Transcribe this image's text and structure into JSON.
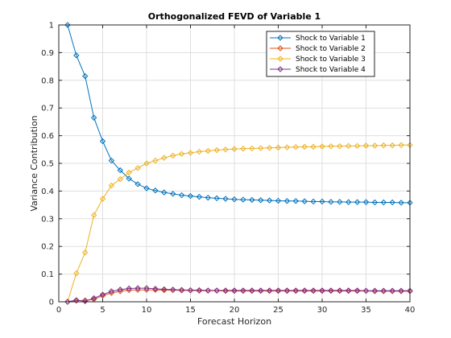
{
  "chart_data": {
    "type": "line",
    "title": "Orthogonalized FEVD of Variable 1",
    "xlabel": "Forecast Horizon",
    "ylabel": "Variance Contribution",
    "xlim": [
      0,
      40
    ],
    "ylim": [
      0,
      1
    ],
    "xticks": [
      0,
      5,
      10,
      15,
      20,
      25,
      30,
      35,
      40
    ],
    "yticks": [
      0,
      0.1,
      0.2,
      0.3,
      0.4,
      0.5,
      0.6,
      0.7,
      0.8,
      0.9,
      1
    ],
    "grid": true,
    "legend_position": "top-right",
    "marker": "diamond",
    "x": [
      1,
      2,
      3,
      4,
      5,
      6,
      7,
      8,
      9,
      10,
      11,
      12,
      13,
      14,
      15,
      16,
      17,
      18,
      19,
      20,
      21,
      22,
      23,
      24,
      25,
      26,
      27,
      28,
      29,
      30,
      31,
      32,
      33,
      34,
      35,
      36,
      37,
      38,
      39,
      40
    ],
    "series": [
      {
        "name": "Shock to Variable 1",
        "color": "#0072bd",
        "values": [
          1.0,
          0.89,
          0.815,
          0.665,
          0.58,
          0.51,
          0.475,
          0.445,
          0.425,
          0.41,
          0.402,
          0.395,
          0.39,
          0.385,
          0.382,
          0.379,
          0.376,
          0.374,
          0.372,
          0.37,
          0.369,
          0.368,
          0.367,
          0.366,
          0.365,
          0.364,
          0.364,
          0.363,
          0.362,
          0.362,
          0.361,
          0.361,
          0.36,
          0.36,
          0.36,
          0.359,
          0.359,
          0.359,
          0.358,
          0.358
        ]
      },
      {
        "name": "Shock to Variable 2",
        "color": "#d95319",
        "values": [
          0.0,
          0.004,
          0.005,
          0.009,
          0.022,
          0.032,
          0.038,
          0.042,
          0.043,
          0.043,
          0.043,
          0.042,
          0.042,
          0.041,
          0.041,
          0.04,
          0.04,
          0.04,
          0.039,
          0.039,
          0.039,
          0.039,
          0.039,
          0.039,
          0.039,
          0.039,
          0.039,
          0.039,
          0.039,
          0.039,
          0.039,
          0.039,
          0.039,
          0.039,
          0.039,
          0.038,
          0.038,
          0.038,
          0.038,
          0.038
        ]
      },
      {
        "name": "Shock to Variable 3",
        "color": "#edb120",
        "values": [
          0.0,
          0.103,
          0.178,
          0.313,
          0.372,
          0.42,
          0.443,
          0.467,
          0.483,
          0.5,
          0.51,
          0.52,
          0.528,
          0.534,
          0.538,
          0.542,
          0.545,
          0.548,
          0.55,
          0.552,
          0.553,
          0.554,
          0.555,
          0.556,
          0.557,
          0.558,
          0.559,
          0.56,
          0.56,
          0.561,
          0.562,
          0.562,
          0.563,
          0.563,
          0.564,
          0.564,
          0.565,
          0.565,
          0.566,
          0.566
        ]
      },
      {
        "name": "Shock to Variable 4",
        "color": "#7e2f8e",
        "values": [
          0.0,
          0.006,
          0.002,
          0.013,
          0.026,
          0.038,
          0.044,
          0.048,
          0.049,
          0.049,
          0.047,
          0.045,
          0.044,
          0.043,
          0.042,
          0.042,
          0.041,
          0.041,
          0.041,
          0.041,
          0.041,
          0.041,
          0.041,
          0.041,
          0.041,
          0.041,
          0.041,
          0.041,
          0.041,
          0.041,
          0.041,
          0.041,
          0.041,
          0.041,
          0.04,
          0.04,
          0.04,
          0.04,
          0.04,
          0.04
        ]
      }
    ]
  }
}
